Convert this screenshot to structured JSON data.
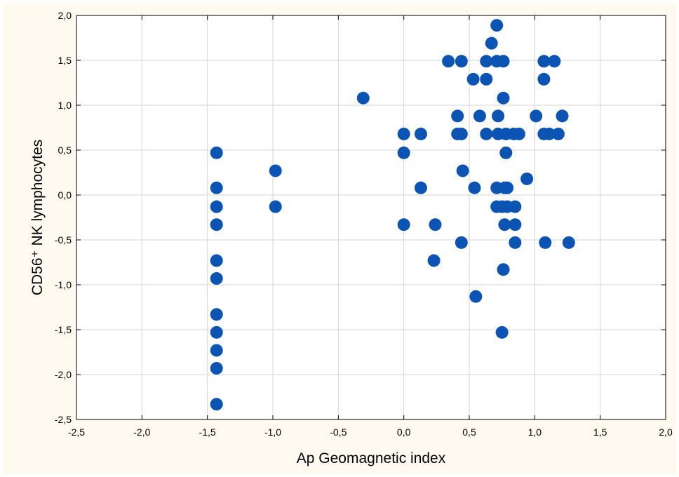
{
  "chart_data": {
    "type": "scatter",
    "xlabel": "Ap Geomagnetic index",
    "ylabel": "CD56⁺ NK lymphocytes",
    "xlim": [
      -2.5,
      2.0
    ],
    "ylim": [
      -2.5,
      2.0
    ],
    "x_ticks": [
      "-2,5",
      "-2,0",
      "-1,5",
      "-1,0",
      "-0,5",
      "0,0",
      "0,5",
      "1,0",
      "1,5",
      "2,0"
    ],
    "y_ticks": [
      "2,0",
      "1,5",
      "1,0",
      "0,5",
      "0,0",
      "-0,5",
      "-1,0",
      "-1,5",
      "-2,0",
      "-2,5"
    ],
    "grid": true,
    "marker_color": "#0b54b4",
    "points": [
      [
        -1.43,
        0.47
      ],
      [
        -1.43,
        0.08
      ],
      [
        -1.43,
        -0.13
      ],
      [
        -1.43,
        -0.33
      ],
      [
        -1.43,
        -0.73
      ],
      [
        -1.43,
        -0.93
      ],
      [
        -1.43,
        -1.33
      ],
      [
        -1.43,
        -1.53
      ],
      [
        -1.43,
        -1.73
      ],
      [
        -1.43,
        -1.93
      ],
      [
        -1.43,
        -2.33
      ],
      [
        -0.98,
        0.27
      ],
      [
        -0.98,
        -0.13
      ],
      [
        -0.31,
        1.08
      ],
      [
        0.0,
        0.68
      ],
      [
        0.0,
        0.47
      ],
      [
        0.0,
        -0.33
      ],
      [
        0.13,
        0.68
      ],
      [
        0.13,
        0.08
      ],
      [
        0.24,
        -0.33
      ],
      [
        0.23,
        -0.73
      ],
      [
        0.34,
        1.49
      ],
      [
        0.41,
        0.88
      ],
      [
        0.41,
        0.68
      ],
      [
        0.44,
        1.49
      ],
      [
        0.44,
        0.68
      ],
      [
        0.44,
        -0.53
      ],
      [
        0.45,
        0.27
      ],
      [
        0.53,
        1.29
      ],
      [
        0.54,
        0.08
      ],
      [
        0.55,
        -1.13
      ],
      [
        0.58,
        0.88
      ],
      [
        0.63,
        1.49
      ],
      [
        0.63,
        1.29
      ],
      [
        0.63,
        0.68
      ],
      [
        0.67,
        1.69
      ],
      [
        0.71,
        1.89
      ],
      [
        0.71,
        1.49
      ],
      [
        0.72,
        0.88
      ],
      [
        0.72,
        0.68
      ],
      [
        0.71,
        0.08
      ],
      [
        0.71,
        -0.13
      ],
      [
        0.75,
        -0.13
      ],
      [
        0.75,
        -1.53
      ],
      [
        0.76,
        1.49
      ],
      [
        0.76,
        1.08
      ],
      [
        0.76,
        -0.83
      ],
      [
        0.78,
        0.68
      ],
      [
        0.78,
        0.47
      ],
      [
        0.77,
        0.08
      ],
      [
        0.77,
        -0.33
      ],
      [
        0.79,
        0.08
      ],
      [
        0.79,
        -0.13
      ],
      [
        0.84,
        0.68
      ],
      [
        0.85,
        -0.13
      ],
      [
        0.85,
        -0.33
      ],
      [
        0.85,
        -0.53
      ],
      [
        0.88,
        0.68
      ],
      [
        0.94,
        0.18
      ],
      [
        1.01,
        0.88
      ],
      [
        1.07,
        1.49
      ],
      [
        1.07,
        1.29
      ],
      [
        1.07,
        0.68
      ],
      [
        1.08,
        -0.53
      ],
      [
        1.11,
        0.68
      ],
      [
        1.15,
        1.49
      ],
      [
        1.18,
        0.68
      ],
      [
        1.21,
        0.88
      ],
      [
        1.26,
        -0.53
      ]
    ]
  }
}
